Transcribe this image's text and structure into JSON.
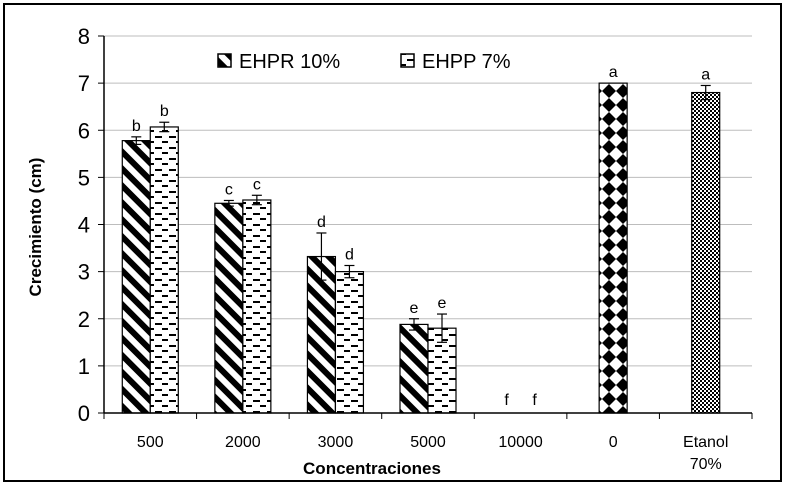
{
  "chart_data": {
    "type": "bar",
    "title": "",
    "xlabel": "Concentraciones",
    "ylabel": "Crecimiento (cm)",
    "ylim": [
      0,
      8
    ],
    "yticks": [
      "0",
      "1",
      "2",
      "3",
      "4",
      "5",
      "6",
      "7",
      "8"
    ],
    "grid": "horizontal",
    "legend_position": "top",
    "categories": [
      "500",
      "2000",
      "3000",
      "5000",
      "10000",
      "0",
      "Etanol 70%"
    ],
    "category_lines": [
      [
        "500"
      ],
      [
        "2000"
      ],
      [
        "3000"
      ],
      [
        "5000"
      ],
      [
        "10000"
      ],
      [
        "0"
      ],
      [
        "Etanol",
        "70%"
      ]
    ],
    "series": [
      {
        "name": "EHPR 10%",
        "pattern": "diagonal-stripes",
        "values": [
          5.78,
          4.45,
          3.32,
          1.88,
          0,
          null,
          null
        ],
        "errors": [
          0.08,
          0.06,
          0.5,
          0.12,
          0,
          null,
          null
        ],
        "labels": [
          "b",
          "c",
          "d",
          "e",
          "f",
          "",
          ""
        ]
      },
      {
        "name": "EHPP 7%",
        "pattern": "horizontal-dashes",
        "values": [
          6.07,
          4.52,
          3.0,
          1.8,
          0,
          null,
          null
        ],
        "errors": [
          0.1,
          0.1,
          0.13,
          0.3,
          0,
          null,
          null
        ],
        "labels": [
          "b",
          "c",
          "d",
          "e",
          "f",
          "",
          ""
        ]
      },
      {
        "name": "",
        "pattern": "diamonds",
        "values": [
          null,
          null,
          null,
          null,
          null,
          7.0,
          null
        ],
        "errors": [
          null,
          null,
          null,
          null,
          null,
          0,
          null
        ],
        "labels": [
          "",
          "",
          "",
          "",
          "",
          "a",
          ""
        ]
      },
      {
        "name": "",
        "pattern": "dots",
        "values": [
          null,
          null,
          null,
          null,
          null,
          null,
          6.8
        ],
        "errors": [
          null,
          null,
          null,
          null,
          null,
          null,
          0.15
        ],
        "labels": [
          "",
          "",
          "",
          "",
          "",
          "",
          "a"
        ]
      }
    ],
    "colors": {
      "bar_fill": "#ffffff",
      "bar_pattern": "#000000",
      "grid": "#bdbdbd",
      "axis": "#000000"
    }
  }
}
